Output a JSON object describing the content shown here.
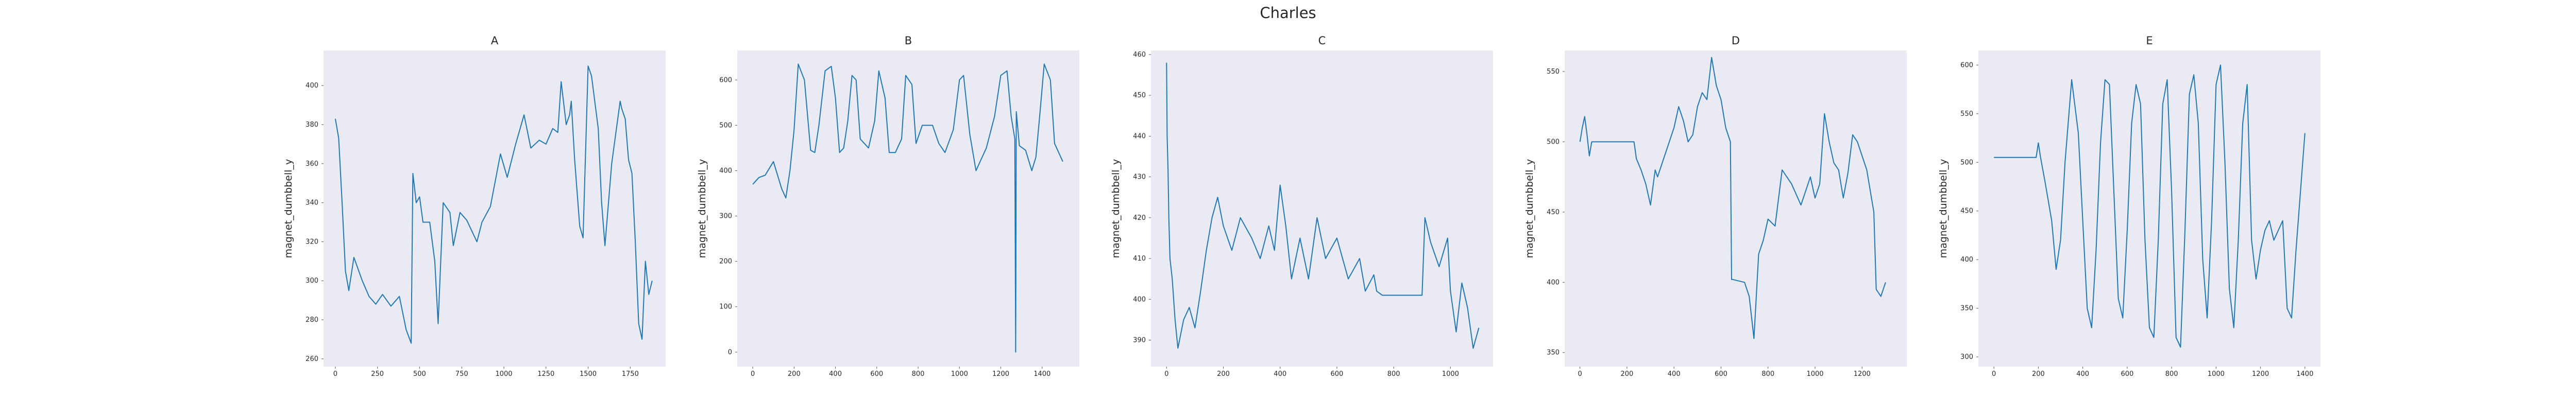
{
  "figure": {
    "title": "Charles"
  },
  "style": {
    "panel_bg": "#eaeaf2",
    "line_color": "#1f77b4",
    "text_color": "#262626"
  },
  "chart_data": [
    {
      "type": "line",
      "title": "A",
      "xlabel": "",
      "ylabel": "magnet_dumbbell_y",
      "xlim": [
        -70,
        1960
      ],
      "ylim": [
        256,
        418
      ],
      "xticks": [
        0,
        250,
        500,
        750,
        1000,
        1250,
        1500,
        1750
      ],
      "yticks": [
        260,
        280,
        300,
        320,
        340,
        360,
        380,
        400
      ],
      "grid": false,
      "series": [
        {
          "x": [
            0,
            10,
            20,
            40,
            60,
            80,
            110,
            160,
            200,
            240,
            280,
            330,
            380,
            420,
            450,
            460,
            480,
            500,
            520,
            560,
            590,
            610,
            640,
            680,
            700,
            740,
            780,
            840,
            870,
            920,
            980,
            1020,
            1070,
            1120,
            1160,
            1210,
            1250,
            1290,
            1320,
            1340,
            1370,
            1390,
            1400,
            1420,
            1450,
            1470,
            1500,
            1520,
            1560,
            1580,
            1600,
            1640,
            1690,
            1700,
            1720,
            1740,
            1760,
            1780,
            1800,
            1820,
            1840,
            1860,
            1880
          ],
          "y": [
            383,
            378,
            373,
            340,
            305,
            295,
            312,
            300,
            292,
            288,
            293,
            287,
            292,
            275,
            268,
            355,
            340,
            343,
            330,
            330,
            310,
            278,
            340,
            335,
            318,
            335,
            331,
            320,
            330,
            338,
            365,
            353,
            370,
            385,
            368,
            372,
            370,
            378,
            376,
            402,
            380,
            385,
            392,
            362,
            328,
            322,
            410,
            405,
            378,
            340,
            318,
            360,
            392,
            388,
            383,
            362,
            355,
            320,
            278,
            270,
            310,
            293,
            300
          ]
        }
      ]
    },
    {
      "type": "line",
      "title": "B",
      "xlabel": "",
      "ylabel": "magnet_dumbbell_y",
      "xlim": [
        -75,
        1580
      ],
      "ylim": [
        -32,
        665
      ],
      "xticks": [
        0,
        200,
        400,
        600,
        800,
        1000,
        1200,
        1400
      ],
      "yticks": [
        0,
        100,
        200,
        300,
        400,
        500,
        600
      ],
      "grid": false,
      "series": [
        {
          "x": [
            0,
            30,
            60,
            100,
            140,
            160,
            180,
            200,
            220,
            250,
            280,
            300,
            320,
            350,
            380,
            400,
            420,
            440,
            460,
            480,
            500,
            520,
            560,
            590,
            610,
            640,
            660,
            690,
            720,
            740,
            770,
            790,
            820,
            850,
            870,
            900,
            930,
            970,
            1000,
            1020,
            1050,
            1080,
            1100,
            1130,
            1170,
            1200,
            1230,
            1250,
            1268,
            1272,
            1275,
            1290,
            1320,
            1350,
            1370,
            1390,
            1410,
            1440,
            1460,
            1480,
            1500
          ],
          "y": [
            370,
            385,
            390,
            420,
            360,
            340,
            400,
            490,
            635,
            600,
            445,
            440,
            500,
            620,
            630,
            560,
            440,
            450,
            510,
            610,
            600,
            470,
            450,
            510,
            620,
            560,
            440,
            440,
            470,
            610,
            590,
            460,
            500,
            500,
            500,
            460,
            440,
            490,
            600,
            610,
            480,
            400,
            420,
            450,
            520,
            610,
            620,
            520,
            470,
            0,
            530,
            455,
            445,
            400,
            430,
            530,
            635,
            600,
            460,
            440,
            420
          ]
        }
      ]
    },
    {
      "type": "line",
      "title": "C",
      "xlabel": "",
      "ylabel": "magnet_dumbbell_y",
      "xlim": [
        -55,
        1150
      ],
      "ylim": [
        383.5,
        461
      ],
      "xticks": [
        0,
        200,
        400,
        600,
        800,
        1000
      ],
      "yticks": [
        390,
        400,
        410,
        420,
        430,
        440,
        450,
        460
      ],
      "grid": false,
      "series": [
        {
          "x": [
            0,
            2,
            5,
            8,
            12,
            20,
            30,
            40,
            60,
            80,
            100,
            120,
            140,
            160,
            180,
            200,
            230,
            260,
            300,
            330,
            360,
            380,
            400,
            420,
            440,
            470,
            500,
            530,
            560,
            600,
            640,
            680,
            700,
            730,
            740,
            760,
            900,
            910,
            930,
            960,
            990,
            1000,
            1020,
            1040,
            1060,
            1080,
            1100
          ],
          "y": [
            458,
            440,
            432,
            420,
            410,
            405,
            395,
            388,
            395,
            398,
            393,
            402,
            412,
            420,
            425,
            418,
            412,
            420,
            415,
            410,
            418,
            412,
            428,
            418,
            405,
            415,
            405,
            420,
            410,
            415,
            405,
            410,
            402,
            406,
            402,
            401,
            401,
            420,
            414,
            408,
            415,
            402,
            392,
            404,
            398,
            388,
            393
          ]
        }
      ]
    },
    {
      "type": "line",
      "title": "D",
      "xlabel": "",
      "ylabel": "magnet_dumbbell_y",
      "xlim": [
        -65,
        1390
      ],
      "ylim": [
        340,
        565
      ],
      "xticks": [
        0,
        200,
        400,
        600,
        800,
        1000,
        1200
      ],
      "yticks": [
        350,
        400,
        450,
        500,
        550
      ],
      "grid": false,
      "series": [
        {
          "x": [
            0,
            10,
            20,
            30,
            40,
            50,
            60,
            120,
            230,
            240,
            260,
            280,
            300,
            320,
            330,
            350,
            380,
            400,
            420,
            440,
            460,
            480,
            500,
            520,
            540,
            560,
            580,
            600,
            620,
            640,
            645,
            650,
            700,
            720,
            740,
            760,
            780,
            800,
            830,
            860,
            900,
            940,
            960,
            980,
            1000,
            1020,
            1040,
            1060,
            1080,
            1100,
            1120,
            1140,
            1160,
            1180,
            1200,
            1220,
            1240,
            1250,
            1260,
            1280,
            1300
          ],
          "y": [
            500,
            510,
            518,
            505,
            490,
            500,
            500,
            500,
            500,
            488,
            480,
            470,
            455,
            480,
            475,
            485,
            500,
            510,
            525,
            515,
            500,
            505,
            525,
            535,
            530,
            560,
            540,
            530,
            510,
            500,
            402,
            402,
            400,
            390,
            360,
            420,
            430,
            445,
            440,
            480,
            470,
            455,
            465,
            475,
            460,
            470,
            520,
            500,
            485,
            480,
            460,
            478,
            505,
            500,
            490,
            480,
            460,
            450,
            395,
            390,
            400
          ]
        }
      ]
    },
    {
      "type": "line",
      "title": "E",
      "xlabel": "",
      "ylabel": "magnet_dumbbell_y",
      "xlim": [
        -70,
        1470
      ],
      "ylim": [
        290,
        615
      ],
      "xticks": [
        0,
        200,
        400,
        600,
        800,
        1000,
        1200,
        1400
      ],
      "yticks": [
        300,
        350,
        400,
        450,
        500,
        550,
        600
      ],
      "grid": false,
      "series": [
        {
          "x": [
            0,
            100,
            190,
            200,
            210,
            230,
            260,
            280,
            300,
            320,
            350,
            380,
            400,
            420,
            440,
            460,
            480,
            500,
            520,
            540,
            560,
            580,
            600,
            620,
            640,
            660,
            680,
            700,
            720,
            740,
            760,
            780,
            800,
            820,
            840,
            860,
            880,
            900,
            920,
            940,
            960,
            980,
            1000,
            1020,
            1040,
            1060,
            1080,
            1100,
            1120,
            1140,
            1160,
            1180,
            1200,
            1220,
            1240,
            1260,
            1280,
            1300,
            1320,
            1340,
            1360,
            1380,
            1400
          ],
          "y": [
            505,
            505,
            505,
            520,
            505,
            480,
            440,
            390,
            420,
            500,
            585,
            530,
            440,
            350,
            330,
            410,
            520,
            585,
            580,
            470,
            360,
            340,
            430,
            540,
            580,
            560,
            420,
            330,
            320,
            420,
            560,
            585,
            470,
            320,
            310,
            430,
            570,
            590,
            540,
            400,
            340,
            440,
            580,
            600,
            500,
            370,
            330,
            420,
            540,
            580,
            420,
            380,
            410,
            430,
            440,
            420,
            430,
            440,
            350,
            340,
            410,
            470,
            530
          ]
        }
      ]
    }
  ]
}
